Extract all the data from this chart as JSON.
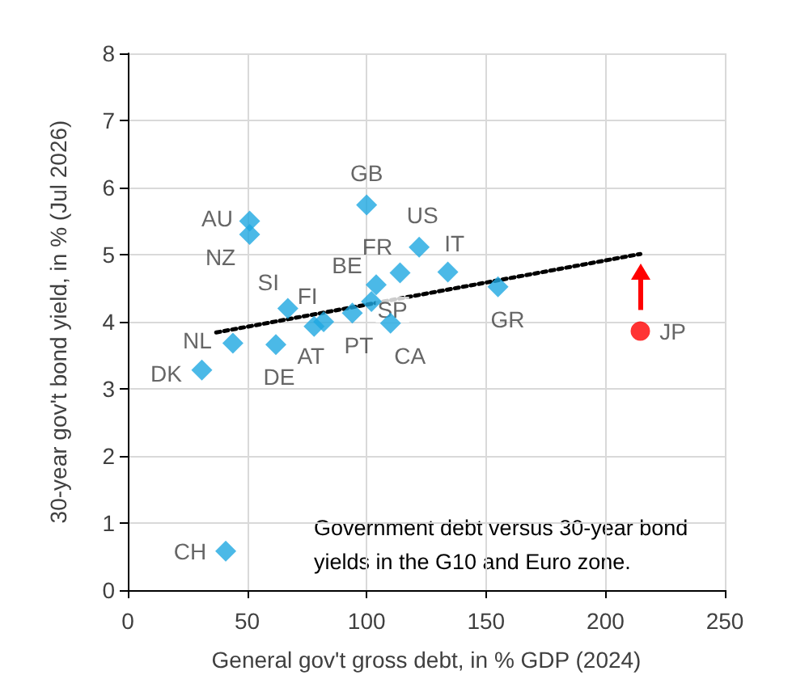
{
  "chart_data": {
    "type": "scatter",
    "xlabel": "General gov't gross debt, in % GDP (2024)",
    "ylabel": "30-year gov't bond yield, in % (Jul 2026)",
    "xlim": [
      0,
      250
    ],
    "xticks": [
      0,
      50,
      100,
      150,
      200,
      250
    ],
    "ylim": [
      0,
      8
    ],
    "yticks": [
      0,
      1,
      2,
      3,
      4,
      5,
      6,
      7,
      8
    ],
    "grid": true,
    "series": [
      {
        "color": "#1ea7e1",
        "marker": "diamond",
        "x": [
          51,
          51,
          100,
          122,
          114,
          104,
          67,
          82,
          78,
          94,
          102,
          110,
          44,
          62,
          31,
          134,
          155,
          41
        ],
        "values": [
          5.5,
          5.3,
          5.74,
          5.11,
          4.73,
          4.55,
          4.2,
          4.0,
          3.93,
          4.13,
          4.3,
          3.98,
          3.68,
          3.66,
          3.28,
          4.74,
          4.52,
          0.58
        ]
      },
      {
        "color": "#ff0000",
        "marker": "circle",
        "x": [
          214.6
        ],
        "values": [
          3.86
        ]
      },
      {
        "type": "line",
        "color": "#000000",
        "marker": "none",
        "line_style": "dotted",
        "x": [
          37,
          214.6
        ],
        "values": [
          3.84,
          5.01
        ]
      }
    ],
    "annotations": [
      {
        "text": "AU",
        "x": 51,
        "y": 5.5
      },
      {
        "text": "NZ",
        "x": 51,
        "y": 5.3
      },
      {
        "text": "GB",
        "x": 100,
        "y": 5.74
      },
      {
        "text": "US",
        "x": 122,
        "y": 5.11
      },
      {
        "text": "FR",
        "x": 114,
        "y": 4.73
      },
      {
        "text": "BE",
        "x": 104,
        "y": 4.55
      },
      {
        "text": "SI",
        "x": 67,
        "y": 4.2
      },
      {
        "text": "FI",
        "x": 82,
        "y": 4.0
      },
      {
        "text": "AT",
        "x": 78,
        "y": 3.93
      },
      {
        "text": "PT",
        "x": 94,
        "y": 4.13
      },
      {
        "text": "SP",
        "x": 102,
        "y": 4.3
      },
      {
        "text": "CA",
        "x": 110,
        "y": 3.98
      },
      {
        "text": "NL",
        "x": 44,
        "y": 3.68
      },
      {
        "text": "DE",
        "x": 62,
        "y": 3.66
      },
      {
        "text": "DK",
        "x": 31,
        "y": 3.28
      },
      {
        "text": "IT",
        "x": 134,
        "y": 4.74
      },
      {
        "text": "GR",
        "x": 155,
        "y": 4.52
      },
      {
        "text": "CH",
        "x": 41,
        "y": 0.58
      },
      {
        "text": "JP",
        "x": 214.6,
        "y": 3.86
      },
      "Government debt versus 30-year bond yields in the G10 and Euro zone."
    ]
  }
}
